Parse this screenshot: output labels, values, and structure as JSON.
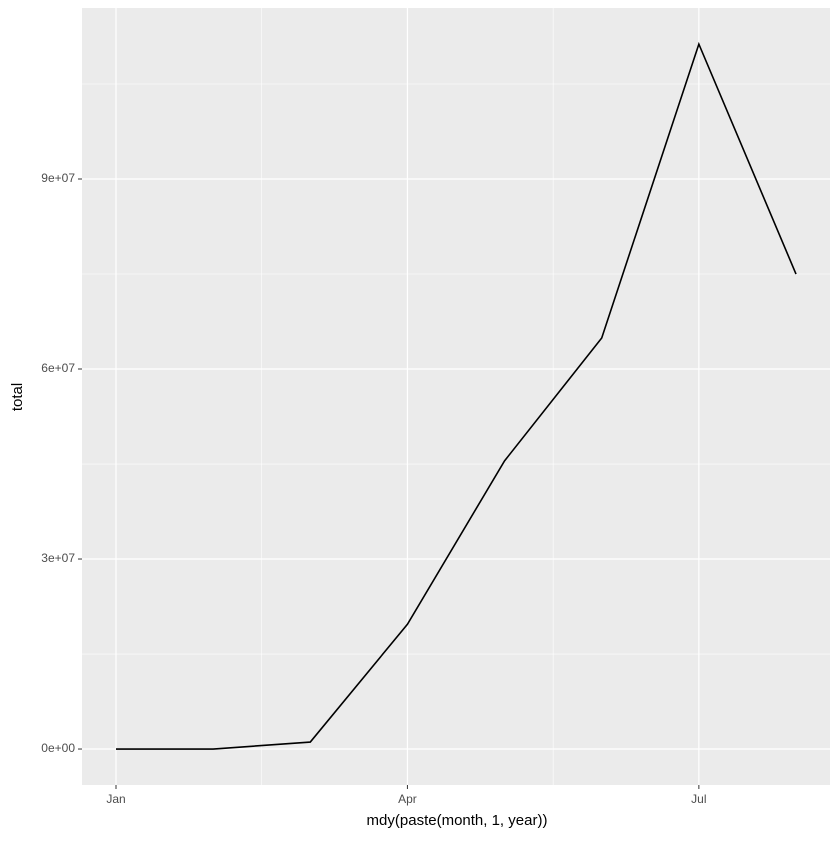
{
  "chart_data": {
    "type": "line",
    "x_label": "mdy(paste(month, 1, year))",
    "y_label": "total",
    "categories": [
      "Jan",
      null,
      null,
      "Apr",
      null,
      null,
      "Jul",
      null
    ],
    "series": [
      {
        "color": "#000000",
        "values": [
          0,
          0,
          1100000,
          19700000,
          45500000,
          64900000,
          111300000,
          75000000
        ]
      }
    ],
    "ylim": [
      -5680000,
      117000000
    ],
    "yticks": [
      {
        "value": 0,
        "label": "0e+00"
      },
      {
        "value": 30000000,
        "label": "3e+07"
      },
      {
        "value": 60000000,
        "label": "6e+07"
      },
      {
        "value": 90000000,
        "label": "9e+07"
      }
    ],
    "grid": true
  }
}
